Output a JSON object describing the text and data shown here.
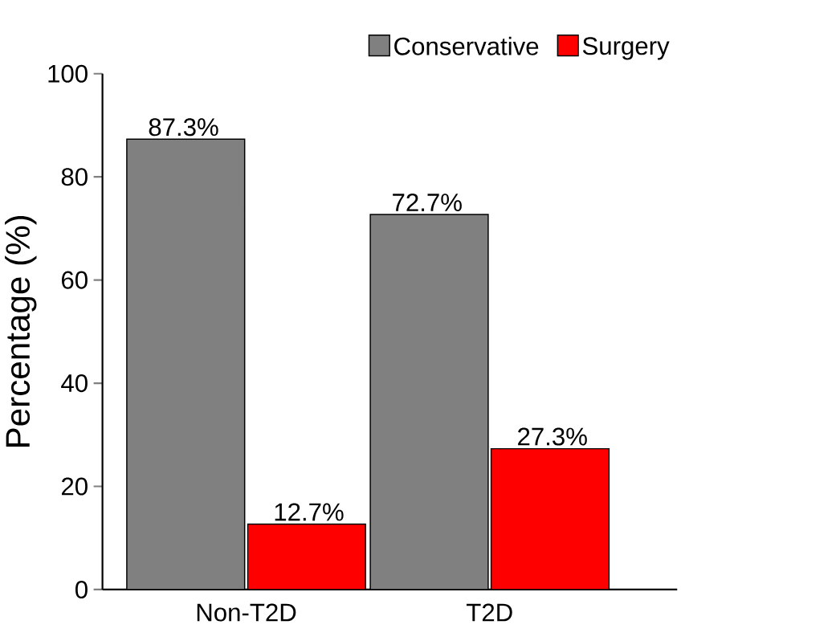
{
  "chart_data": {
    "type": "bar",
    "ylabel": "Percentage (%)",
    "categories": [
      "Non-T2D",
      "T2D"
    ],
    "series": [
      {
        "name": "Conservative",
        "color": "#808080",
        "values": [
          87.3,
          72.7
        ],
        "value_labels": [
          "87.3%",
          "72.7%"
        ]
      },
      {
        "name": "Surgery",
        "color": "#ff0000",
        "values": [
          12.7,
          27.3
        ],
        "value_labels": [
          "12.7%",
          "27.3%"
        ]
      }
    ],
    "ylim": [
      0,
      100
    ],
    "yticks": [
      0,
      20,
      40,
      60,
      80,
      100
    ],
    "legend": "top",
    "grid": false
  }
}
